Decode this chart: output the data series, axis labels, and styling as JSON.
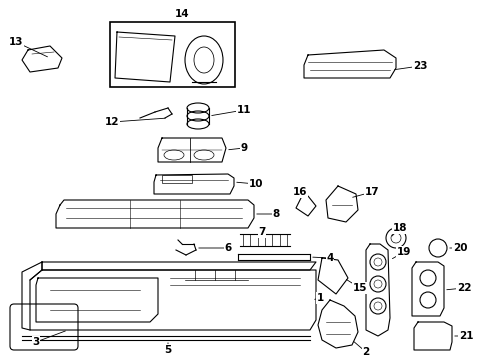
{
  "bg_color": "#ffffff",
  "line_color": "#000000",
  "font_size": 7.5
}
